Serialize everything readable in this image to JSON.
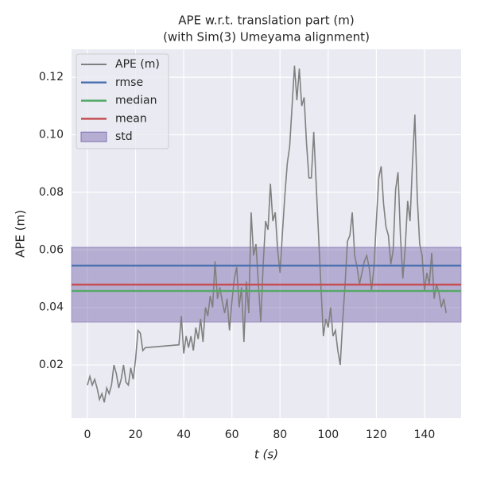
{
  "chart_data": {
    "type": "line",
    "title": "APE w.r.t. translation part (m)",
    "subtitle": "(with Sim(3) Umeyama alignment)",
    "x_label": "t (s)",
    "y_label": "APE (m)",
    "xlim": [
      -6.6,
      155.2
    ],
    "ylim": [
      0.0015,
      0.1297
    ],
    "xticks": [
      0,
      20,
      40,
      60,
      80,
      100,
      120,
      140
    ],
    "yticks": [
      0.02,
      0.04,
      0.06,
      0.08,
      {
        "value": 0.1,
        "label": "0.10"
      },
      0.12
    ],
    "grid": true,
    "legend": "upper left",
    "x": [
      0,
      1,
      2,
      3,
      4,
      5,
      6,
      7,
      8,
      9,
      10,
      11,
      12,
      13,
      14,
      15,
      16,
      17,
      18,
      19,
      20,
      21,
      22,
      23,
      24,
      38,
      39,
      40,
      41,
      42,
      43,
      44,
      45,
      46,
      47,
      48,
      49,
      50,
      51,
      52,
      53,
      54,
      55,
      56,
      57,
      58,
      59,
      60,
      61,
      62,
      63,
      64,
      65,
      66,
      67,
      68,
      69,
      70,
      71,
      72,
      73,
      74,
      75,
      76,
      77,
      78,
      79,
      80,
      81,
      82,
      83,
      84,
      85,
      86,
      87,
      88,
      89,
      90,
      91,
      92,
      93,
      94,
      95,
      96,
      97,
      98,
      99,
      100,
      101,
      102,
      103,
      104,
      105,
      106,
      107,
      108,
      109,
      110,
      111,
      112,
      113,
      114,
      115,
      116,
      117,
      118,
      119,
      120,
      121,
      122,
      123,
      124,
      125,
      126,
      127,
      128,
      129,
      130,
      131,
      132,
      133,
      134,
      135,
      136,
      137,
      138,
      139,
      140,
      141,
      142,
      143,
      144,
      145,
      146,
      147,
      148,
      149
    ],
    "series": [
      {
        "name": "APE (m)",
        "color": "#808080",
        "values": [
          0.013,
          0.016,
          0.013,
          0.015,
          0.012,
          0.008,
          0.01,
          0.007,
          0.012,
          0.01,
          0.013,
          0.02,
          0.017,
          0.012,
          0.015,
          0.02,
          0.014,
          0.013,
          0.019,
          0.015,
          0.022,
          0.032,
          0.031,
          0.025,
          0.026,
          0.027,
          0.037,
          0.024,
          0.03,
          0.026,
          0.03,
          0.025,
          0.033,
          0.029,
          0.036,
          0.028,
          0.04,
          0.037,
          0.044,
          0.04,
          0.056,
          0.043,
          0.047,
          0.042,
          0.038,
          0.043,
          0.032,
          0.042,
          0.05,
          0.054,
          0.04,
          0.047,
          0.028,
          0.049,
          0.038,
          0.073,
          0.058,
          0.062,
          0.048,
          0.035,
          0.055,
          0.07,
          0.067,
          0.083,
          0.07,
          0.073,
          0.06,
          0.052,
          0.066,
          0.079,
          0.09,
          0.096,
          0.11,
          0.124,
          0.112,
          0.123,
          0.11,
          0.113,
          0.097,
          0.085,
          0.085,
          0.101,
          0.083,
          0.065,
          0.047,
          0.03,
          0.036,
          0.033,
          0.04,
          0.03,
          0.032,
          0.025,
          0.02,
          0.035,
          0.048,
          0.063,
          0.065,
          0.073,
          0.058,
          0.054,
          0.048,
          0.052,
          0.056,
          0.058,
          0.054,
          0.046,
          0.054,
          0.07,
          0.085,
          0.089,
          0.076,
          0.068,
          0.065,
          0.055,
          0.06,
          0.081,
          0.087,
          0.065,
          0.05,
          0.061,
          0.077,
          0.07,
          0.09,
          0.107,
          0.078,
          0.062,
          0.058,
          0.046,
          0.052,
          0.048,
          0.059,
          0.043,
          0.048,
          0.045,
          0.04,
          0.043,
          0.038
        ]
      }
    ],
    "hlines": [
      {
        "name": "rmse",
        "color": "#4c72b0",
        "value": 0.0545
      },
      {
        "name": "median",
        "color": "#55a868",
        "value": 0.0457
      },
      {
        "name": "mean",
        "color": "#c44e52",
        "value": 0.0479
      }
    ],
    "band": {
      "name": "std",
      "color": "#8172b2",
      "value": 0.013
    }
  }
}
